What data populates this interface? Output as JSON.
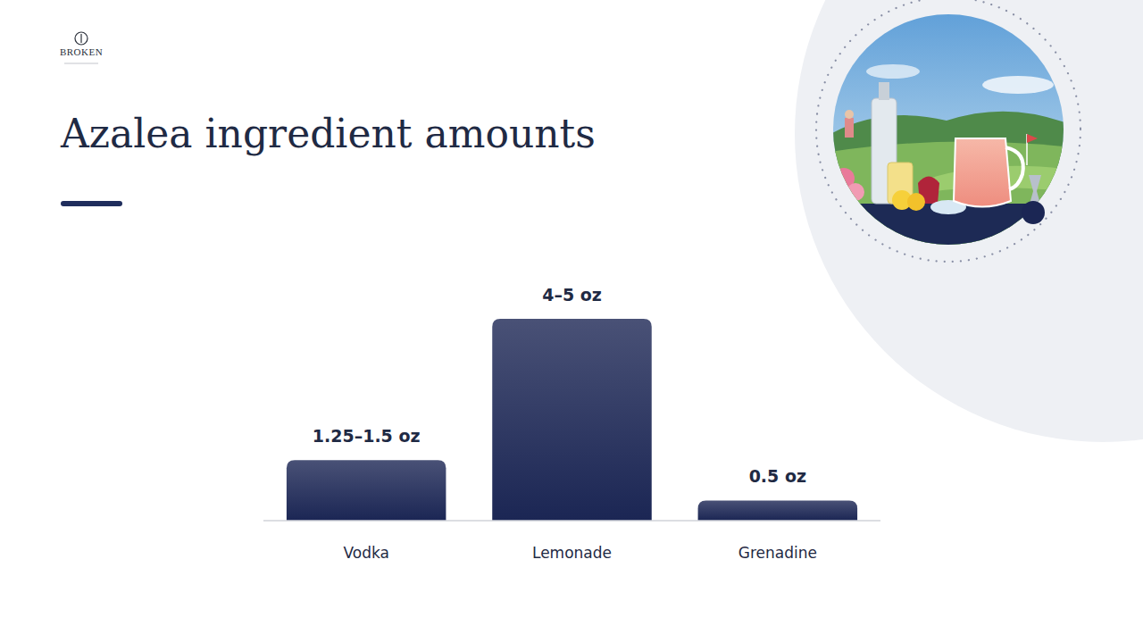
{
  "chart_data": {
    "type": "bar",
    "title": "Azalea ingredient amounts",
    "categories": [
      "Vodka",
      "Lemonade",
      "Grenadine"
    ],
    "values": [
      1.5,
      5,
      0.5
    ],
    "value_labels": [
      "1.25–1.5 oz",
      "4–5 oz",
      "0.5 oz"
    ],
    "color": "#1b2654",
    "ylim": [
      0,
      5
    ],
    "data_labels": true,
    "tick_labels": "x",
    "grid": false
  },
  "logo": {
    "text": "BROKEN"
  }
}
